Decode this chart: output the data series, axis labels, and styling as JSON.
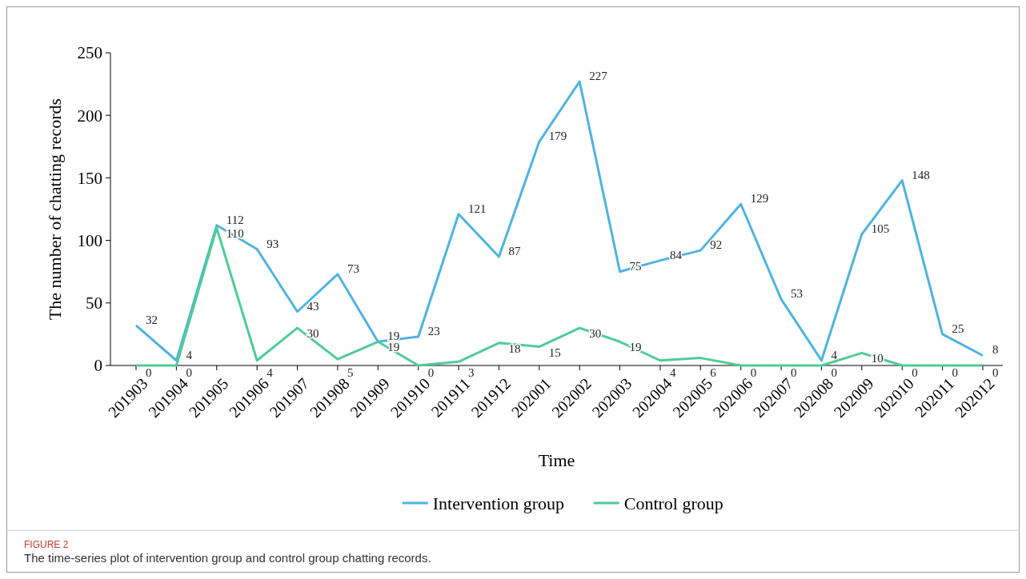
{
  "chart_data": {
    "type": "line",
    "xlabel": "Time",
    "ylabel": "The number of chatting records",
    "categories": [
      "201903",
      "201904",
      "201905",
      "201906",
      "201907",
      "201908",
      "201909",
      "201910",
      "201911",
      "201912",
      "202001",
      "202002",
      "202003",
      "202004",
      "202005",
      "202006",
      "202007",
      "202008",
      "202009",
      "202010",
      "202011",
      "202012"
    ],
    "series": [
      {
        "name": "Intervention group",
        "color": "#4fb3e0",
        "values": [
          32,
          4,
          112,
          93,
          43,
          73,
          19,
          23,
          121,
          87,
          179,
          227,
          75,
          84,
          92,
          129,
          53,
          4,
          105,
          148,
          25,
          8
        ]
      },
      {
        "name": "Control group",
        "color": "#4fcc96",
        "values": [
          0,
          0,
          110,
          4,
          30,
          5,
          19,
          0,
          3,
          18,
          15,
          30,
          19,
          4,
          6,
          0,
          0,
          0,
          10,
          0,
          0,
          0
        ]
      }
    ],
    "ylim": [
      0,
      250
    ],
    "yticks": [
      0,
      50,
      100,
      150,
      200,
      250
    ],
    "grid": false,
    "legend": "bottom",
    "data_labels": true,
    "marker": "none",
    "annotations": [
      "FIGURE 2",
      "The time-series plot of intervention group and control group chatting records."
    ]
  }
}
